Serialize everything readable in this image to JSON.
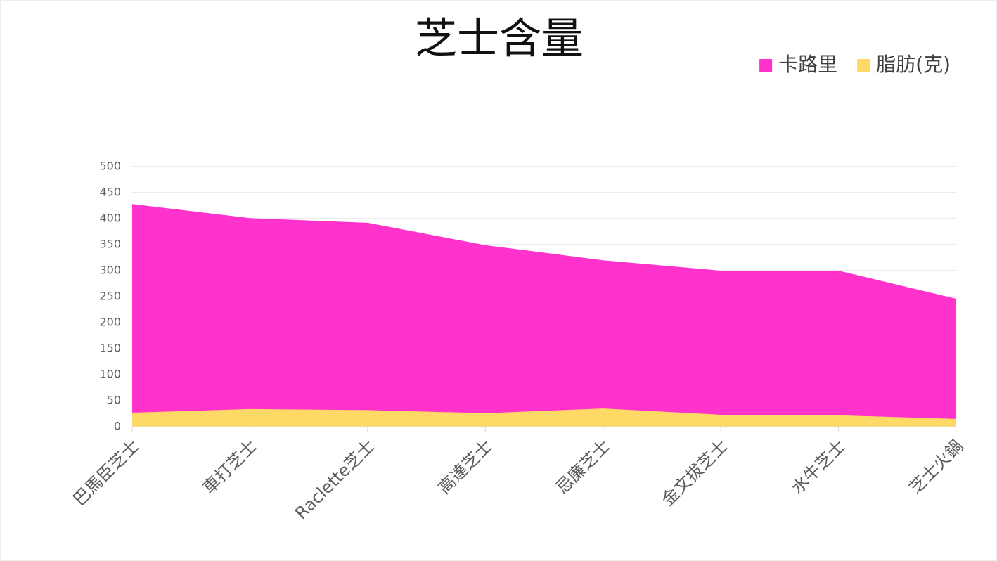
{
  "chart_data": {
    "type": "area",
    "title": "芝士含量",
    "categories": [
      "巴馬臣芝士",
      "車打芝士",
      "Raclette芝士",
      "高達芝士",
      "忌廉芝士",
      "金文拔芝士",
      "水牛芝士",
      "芝士火鍋"
    ],
    "series": [
      {
        "name": "卡路里",
        "color": "#ff33cc",
        "values": [
          428,
          401,
          392,
          349,
          320,
          300,
          300,
          246
        ]
      },
      {
        "name": "脂肪(克)",
        "color": "#ffd966",
        "values": [
          27,
          34,
          32,
          26,
          35,
          23,
          22,
          15
        ]
      }
    ],
    "ylim": [
      0,
      500
    ],
    "yticks": [
      0,
      50,
      100,
      150,
      200,
      250,
      300,
      350,
      400,
      450,
      500
    ],
    "grid": true,
    "legend": "top-right"
  }
}
